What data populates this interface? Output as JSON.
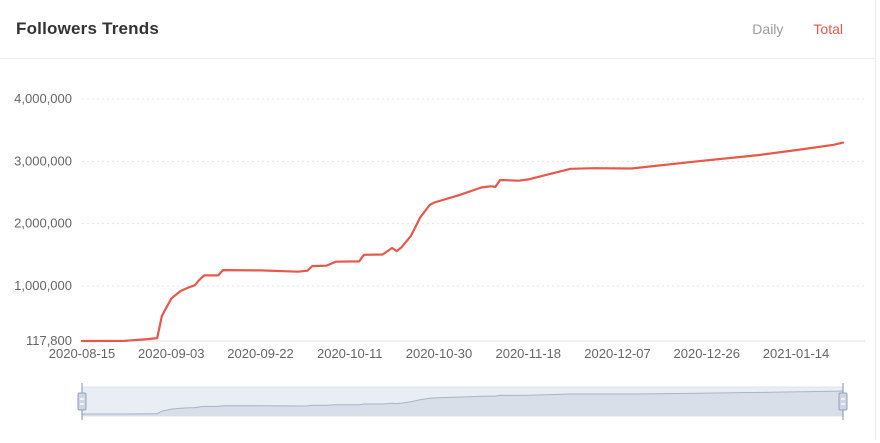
{
  "header": {
    "title": "Followers Trends",
    "tabs": [
      {
        "label": "Daily",
        "active": false
      },
      {
        "label": "Total",
        "active": true
      }
    ]
  },
  "colors": {
    "accent": "#e8584a",
    "inactive_tab": "#9b9b9b",
    "axis_label": "#666666",
    "grid_line": "#e4e4e4",
    "axis_line": "#e0e0e0",
    "zoom_band_bg": "#e9eef5",
    "zoom_band_border": "#dde4ee",
    "zoom_area_fill": "#d9dfe9",
    "zoom_area_line": "#aab4c2",
    "zoom_handle_fill": "#cdd6e2",
    "zoom_handle_border": "#93a2b8"
  },
  "chart_data": {
    "type": "line",
    "title": "Followers Trends",
    "series_name": "Total followers",
    "line_color": "#e8584a",
    "grid": "dotted-horizontal",
    "legend": "none",
    "x_axis": {
      "type": "date",
      "start": "2020-08-15",
      "end": "2021-01-24",
      "tick_labels": [
        "2020-08-15",
        "2020-09-03",
        "2020-09-22",
        "2020-10-11",
        "2020-10-30",
        "2020-11-18",
        "2020-12-07",
        "2020-12-26",
        "2021-01-14"
      ]
    },
    "y_axis": {
      "min": 117800,
      "max": 4000000,
      "tick_values": [
        117800,
        1000000,
        2000000,
        3000000,
        4000000
      ],
      "tick_labels": [
        "117,800",
        "1,000,000",
        "2,000,000",
        "3,000,000",
        "4,000,000"
      ]
    },
    "points": [
      {
        "date": "2020-08-15",
        "value": 117800
      },
      {
        "date": "2020-08-24",
        "value": 120000
      },
      {
        "date": "2020-08-29",
        "value": 148000
      },
      {
        "date": "2020-08-31",
        "value": 165000
      },
      {
        "date": "2020-09-01",
        "value": 520000
      },
      {
        "date": "2020-09-02",
        "value": 660000
      },
      {
        "date": "2020-09-03",
        "value": 800000
      },
      {
        "date": "2020-09-05",
        "value": 920000
      },
      {
        "date": "2020-09-07",
        "value": 985000
      },
      {
        "date": "2020-09-08",
        "value": 1010000
      },
      {
        "date": "2020-09-09",
        "value": 1100000
      },
      {
        "date": "2020-09-10",
        "value": 1170000
      },
      {
        "date": "2020-09-13",
        "value": 1170000
      },
      {
        "date": "2020-09-14",
        "value": 1255000
      },
      {
        "date": "2020-09-22",
        "value": 1250000
      },
      {
        "date": "2020-09-30",
        "value": 1230000
      },
      {
        "date": "2020-10-02",
        "value": 1245000
      },
      {
        "date": "2020-10-03",
        "value": 1320000
      },
      {
        "date": "2020-10-06",
        "value": 1325000
      },
      {
        "date": "2020-10-08",
        "value": 1390000
      },
      {
        "date": "2020-10-13",
        "value": 1395000
      },
      {
        "date": "2020-10-14",
        "value": 1500000
      },
      {
        "date": "2020-10-18",
        "value": 1505000
      },
      {
        "date": "2020-10-20",
        "value": 1610000
      },
      {
        "date": "2020-10-21",
        "value": 1560000
      },
      {
        "date": "2020-10-22",
        "value": 1620000
      },
      {
        "date": "2020-10-24",
        "value": 1800000
      },
      {
        "date": "2020-10-26",
        "value": 2100000
      },
      {
        "date": "2020-10-28",
        "value": 2300000
      },
      {
        "date": "2020-10-29",
        "value": 2340000
      },
      {
        "date": "2020-11-03",
        "value": 2450000
      },
      {
        "date": "2020-11-08",
        "value": 2580000
      },
      {
        "date": "2020-11-10",
        "value": 2600000
      },
      {
        "date": "2020-11-11",
        "value": 2590000
      },
      {
        "date": "2020-11-12",
        "value": 2700000
      },
      {
        "date": "2020-11-16",
        "value": 2690000
      },
      {
        "date": "2020-11-18",
        "value": 2710000
      },
      {
        "date": "2020-11-27",
        "value": 2880000
      },
      {
        "date": "2020-12-02",
        "value": 2890000
      },
      {
        "date": "2020-12-10",
        "value": 2885000
      },
      {
        "date": "2020-12-24",
        "value": 3000000
      },
      {
        "date": "2021-01-06",
        "value": 3100000
      },
      {
        "date": "2021-01-15",
        "value": 3190000
      },
      {
        "date": "2021-01-22",
        "value": 3265000
      },
      {
        "date": "2021-01-24",
        "value": 3300000
      }
    ]
  },
  "datazoom": {
    "range_start_pct": 0,
    "range_end_pct": 100
  }
}
